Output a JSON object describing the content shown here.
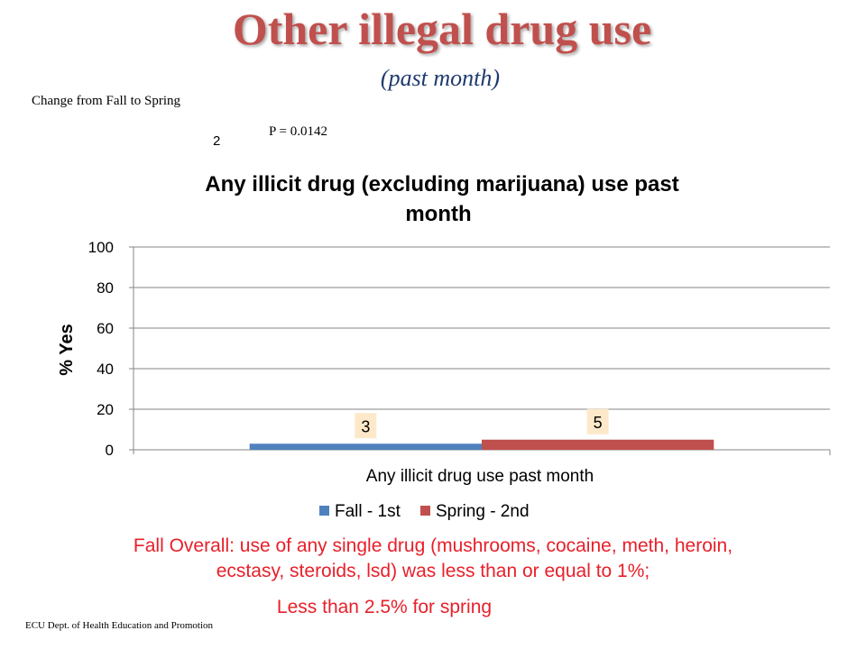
{
  "slide": {
    "title": "Other illegal drug use",
    "subtitle": "(past month)",
    "change_note": "Change  from Fall to Spring",
    "chi_mark": "2",
    "p_value": "P = 0.0142",
    "notes": [
      "Fall Overall: use of any single drug (mushrooms, cocaine, meth, heroin,",
      "ecstasy, steroids, lsd)  was less than or equal to 1%;",
      "Less than 2.5% for spring"
    ],
    "footer": "ECU Dept. of Health Education and Promotion"
  },
  "chart_data": {
    "type": "bar",
    "title": "Any illicit drug (excluding marijuana) use past month",
    "title_lines": [
      "Any illicit drug (excluding marijuana) use past",
      "month"
    ],
    "ylabel": "% Yes",
    "xlabel": "",
    "categories": [
      "Any illicit drug use past month"
    ],
    "series": [
      {
        "name": "Fall - 1st",
        "values": [
          3
        ],
        "color": "#4f81bd"
      },
      {
        "name": "Spring - 2nd",
        "values": [
          5
        ],
        "color": "#c0504d"
      }
    ],
    "ylim": [
      0,
      100
    ],
    "yticks": [
      0,
      20,
      40,
      60,
      80,
      100
    ],
    "grid": true,
    "legend_position": "bottom",
    "data_label_bg": "#fde9c9"
  }
}
